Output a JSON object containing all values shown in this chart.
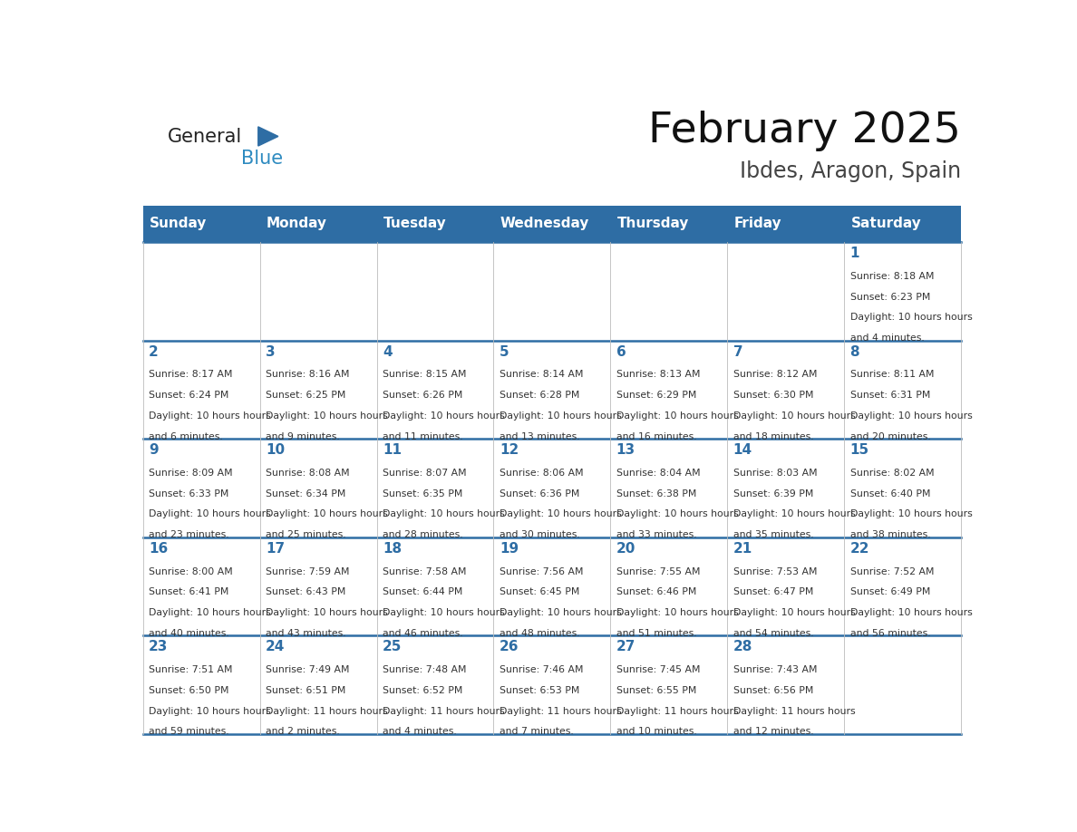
{
  "title": "February 2025",
  "subtitle": "Ibdes, Aragon, Spain",
  "days_of_week": [
    "Sunday",
    "Monday",
    "Tuesday",
    "Wednesday",
    "Thursday",
    "Friday",
    "Saturday"
  ],
  "header_bg": "#2E6DA4",
  "header_text_color": "#FFFFFF",
  "cell_border_color": "#2E6DA4",
  "day_number_color": "#2E6DA4",
  "cell_text_color": "#333333",
  "background_color": "#FFFFFF",
  "logo_general_color": "#222222",
  "logo_blue_color": "#2E8BC0",
  "logo_triangle_color": "#2E6DA4",
  "calendar_data": [
    {
      "day": 1,
      "col": 6,
      "row": 0,
      "sunrise": "8:18 AM",
      "sunset": "6:23 PM",
      "daylight": "10 hours and 4 minutes."
    },
    {
      "day": 2,
      "col": 0,
      "row": 1,
      "sunrise": "8:17 AM",
      "sunset": "6:24 PM",
      "daylight": "10 hours and 6 minutes."
    },
    {
      "day": 3,
      "col": 1,
      "row": 1,
      "sunrise": "8:16 AM",
      "sunset": "6:25 PM",
      "daylight": "10 hours and 9 minutes."
    },
    {
      "day": 4,
      "col": 2,
      "row": 1,
      "sunrise": "8:15 AM",
      "sunset": "6:26 PM",
      "daylight": "10 hours and 11 minutes."
    },
    {
      "day": 5,
      "col": 3,
      "row": 1,
      "sunrise": "8:14 AM",
      "sunset": "6:28 PM",
      "daylight": "10 hours and 13 minutes."
    },
    {
      "day": 6,
      "col": 4,
      "row": 1,
      "sunrise": "8:13 AM",
      "sunset": "6:29 PM",
      "daylight": "10 hours and 16 minutes."
    },
    {
      "day": 7,
      "col": 5,
      "row": 1,
      "sunrise": "8:12 AM",
      "sunset": "6:30 PM",
      "daylight": "10 hours and 18 minutes."
    },
    {
      "day": 8,
      "col": 6,
      "row": 1,
      "sunrise": "8:11 AM",
      "sunset": "6:31 PM",
      "daylight": "10 hours and 20 minutes."
    },
    {
      "day": 9,
      "col": 0,
      "row": 2,
      "sunrise": "8:09 AM",
      "sunset": "6:33 PM",
      "daylight": "10 hours and 23 minutes."
    },
    {
      "day": 10,
      "col": 1,
      "row": 2,
      "sunrise": "8:08 AM",
      "sunset": "6:34 PM",
      "daylight": "10 hours and 25 minutes."
    },
    {
      "day": 11,
      "col": 2,
      "row": 2,
      "sunrise": "8:07 AM",
      "sunset": "6:35 PM",
      "daylight": "10 hours and 28 minutes."
    },
    {
      "day": 12,
      "col": 3,
      "row": 2,
      "sunrise": "8:06 AM",
      "sunset": "6:36 PM",
      "daylight": "10 hours and 30 minutes."
    },
    {
      "day": 13,
      "col": 4,
      "row": 2,
      "sunrise": "8:04 AM",
      "sunset": "6:38 PM",
      "daylight": "10 hours and 33 minutes."
    },
    {
      "day": 14,
      "col": 5,
      "row": 2,
      "sunrise": "8:03 AM",
      "sunset": "6:39 PM",
      "daylight": "10 hours and 35 minutes."
    },
    {
      "day": 15,
      "col": 6,
      "row": 2,
      "sunrise": "8:02 AM",
      "sunset": "6:40 PM",
      "daylight": "10 hours and 38 minutes."
    },
    {
      "day": 16,
      "col": 0,
      "row": 3,
      "sunrise": "8:00 AM",
      "sunset": "6:41 PM",
      "daylight": "10 hours and 40 minutes."
    },
    {
      "day": 17,
      "col": 1,
      "row": 3,
      "sunrise": "7:59 AM",
      "sunset": "6:43 PM",
      "daylight": "10 hours and 43 minutes."
    },
    {
      "day": 18,
      "col": 2,
      "row": 3,
      "sunrise": "7:58 AM",
      "sunset": "6:44 PM",
      "daylight": "10 hours and 46 minutes."
    },
    {
      "day": 19,
      "col": 3,
      "row": 3,
      "sunrise": "7:56 AM",
      "sunset": "6:45 PM",
      "daylight": "10 hours and 48 minutes."
    },
    {
      "day": 20,
      "col": 4,
      "row": 3,
      "sunrise": "7:55 AM",
      "sunset": "6:46 PM",
      "daylight": "10 hours and 51 minutes."
    },
    {
      "day": 21,
      "col": 5,
      "row": 3,
      "sunrise": "7:53 AM",
      "sunset": "6:47 PM",
      "daylight": "10 hours and 54 minutes."
    },
    {
      "day": 22,
      "col": 6,
      "row": 3,
      "sunrise": "7:52 AM",
      "sunset": "6:49 PM",
      "daylight": "10 hours and 56 minutes."
    },
    {
      "day": 23,
      "col": 0,
      "row": 4,
      "sunrise": "7:51 AM",
      "sunset": "6:50 PM",
      "daylight": "10 hours and 59 minutes."
    },
    {
      "day": 24,
      "col": 1,
      "row": 4,
      "sunrise": "7:49 AM",
      "sunset": "6:51 PM",
      "daylight": "11 hours and 2 minutes."
    },
    {
      "day": 25,
      "col": 2,
      "row": 4,
      "sunrise": "7:48 AM",
      "sunset": "6:52 PM",
      "daylight": "11 hours and 4 minutes."
    },
    {
      "day": 26,
      "col": 3,
      "row": 4,
      "sunrise": "7:46 AM",
      "sunset": "6:53 PM",
      "daylight": "11 hours and 7 minutes."
    },
    {
      "day": 27,
      "col": 4,
      "row": 4,
      "sunrise": "7:45 AM",
      "sunset": "6:55 PM",
      "daylight": "11 hours and 10 minutes."
    },
    {
      "day": 28,
      "col": 5,
      "row": 4,
      "sunrise": "7:43 AM",
      "sunset": "6:56 PM",
      "daylight": "11 hours and 12 minutes."
    }
  ],
  "num_rows": 5,
  "num_cols": 7
}
